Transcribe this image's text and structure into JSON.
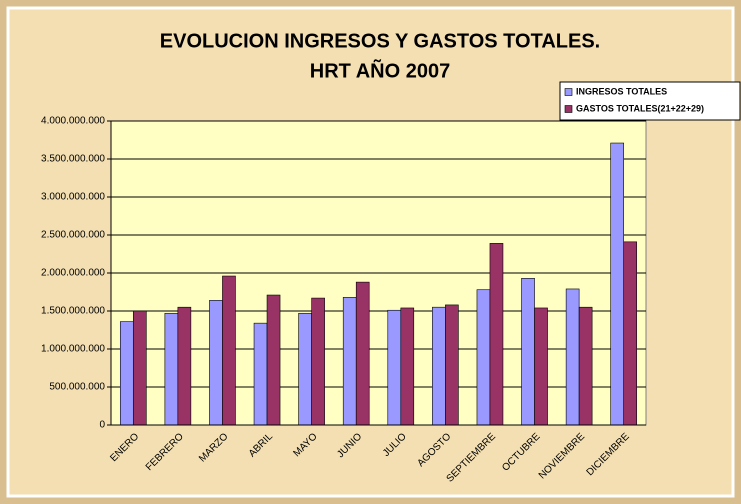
{
  "chart_data": {
    "type": "bar",
    "title": [
      "EVOLUCION INGRESOS Y GASTOS TOTALES.",
      "HRT AÑO 2007"
    ],
    "categories": [
      "ENERO",
      "FEBRERO",
      "MARZO",
      "ABRIL",
      "MAYO",
      "JUNIO",
      "JULIO",
      "AGOSTO",
      "SEPTIEMBRE",
      "OCTUBRE",
      "NOVIEMBRE",
      "DICIEMBRE"
    ],
    "series": [
      {
        "name": "INGRESOS TOTALES",
        "color": "#9999ff",
        "values": [
          1360000000,
          1470000000,
          1640000000,
          1340000000,
          1470000000,
          1680000000,
          1510000000,
          1550000000,
          1780000000,
          1930000000,
          1790000000,
          3710000000
        ]
      },
      {
        "name": "GASTOS TOTALES(21+22+29)",
        "color": "#993366",
        "values": [
          1500000000,
          1550000000,
          1960000000,
          1710000000,
          1670000000,
          1880000000,
          1540000000,
          1580000000,
          2390000000,
          1540000000,
          1550000000,
          2410000000
        ]
      }
    ],
    "ylim": [
      0,
      4000000000
    ],
    "yticks": [
      0,
      {
        "value": 500000000,
        "label": "500.000.000"
      },
      {
        "value": 1000000000,
        "label": "1.000.000.000"
      },
      {
        "value": 1500000000,
        "label": "1.500.000.000"
      },
      {
        "value": 2000000000,
        "label": "2.000.000.000"
      },
      {
        "value": 2500000000,
        "label": "2.500.000.000"
      },
      {
        "value": 3000000000,
        "label": "3.000.000.000"
      },
      {
        "value": 3500000000,
        "label": "3.500.000.000"
      },
      {
        "value": 4000000000,
        "label": "4.000.000.000"
      }
    ],
    "grid": true,
    "legend": "top-right"
  }
}
